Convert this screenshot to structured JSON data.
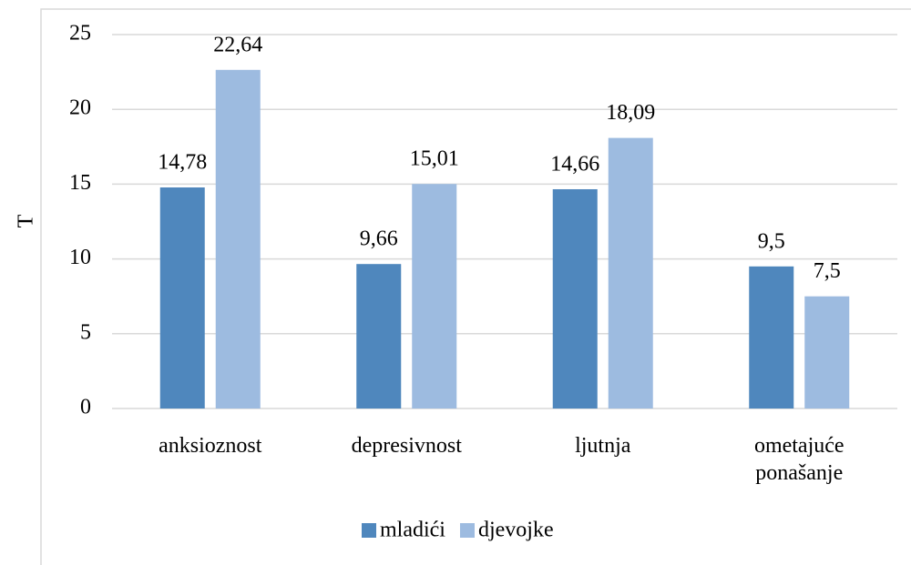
{
  "chart_data": {
    "type": "bar",
    "y_label": "T",
    "categories": [
      "anksioznost",
      "depresivnost",
      "ljutnja",
      "ometajuće ponašanje"
    ],
    "series": [
      {
        "name": "mladići",
        "color": "#4f87bd",
        "values": [
          14.78,
          9.66,
          14.66,
          9.5
        ],
        "value_labels": [
          "14,78",
          "9,66",
          "14,66",
          "9,5"
        ]
      },
      {
        "name": "djevojke",
        "color": "#9dbbe0",
        "values": [
          22.64,
          15.01,
          18.09,
          7.5
        ],
        "value_labels": [
          "22,64",
          "15,01",
          "18,09",
          "7,5"
        ]
      }
    ],
    "ylim": [
      0,
      25
    ],
    "yticks": [
      0,
      5,
      10,
      15,
      20,
      25
    ],
    "grid": true,
    "legend": "bottom"
  }
}
